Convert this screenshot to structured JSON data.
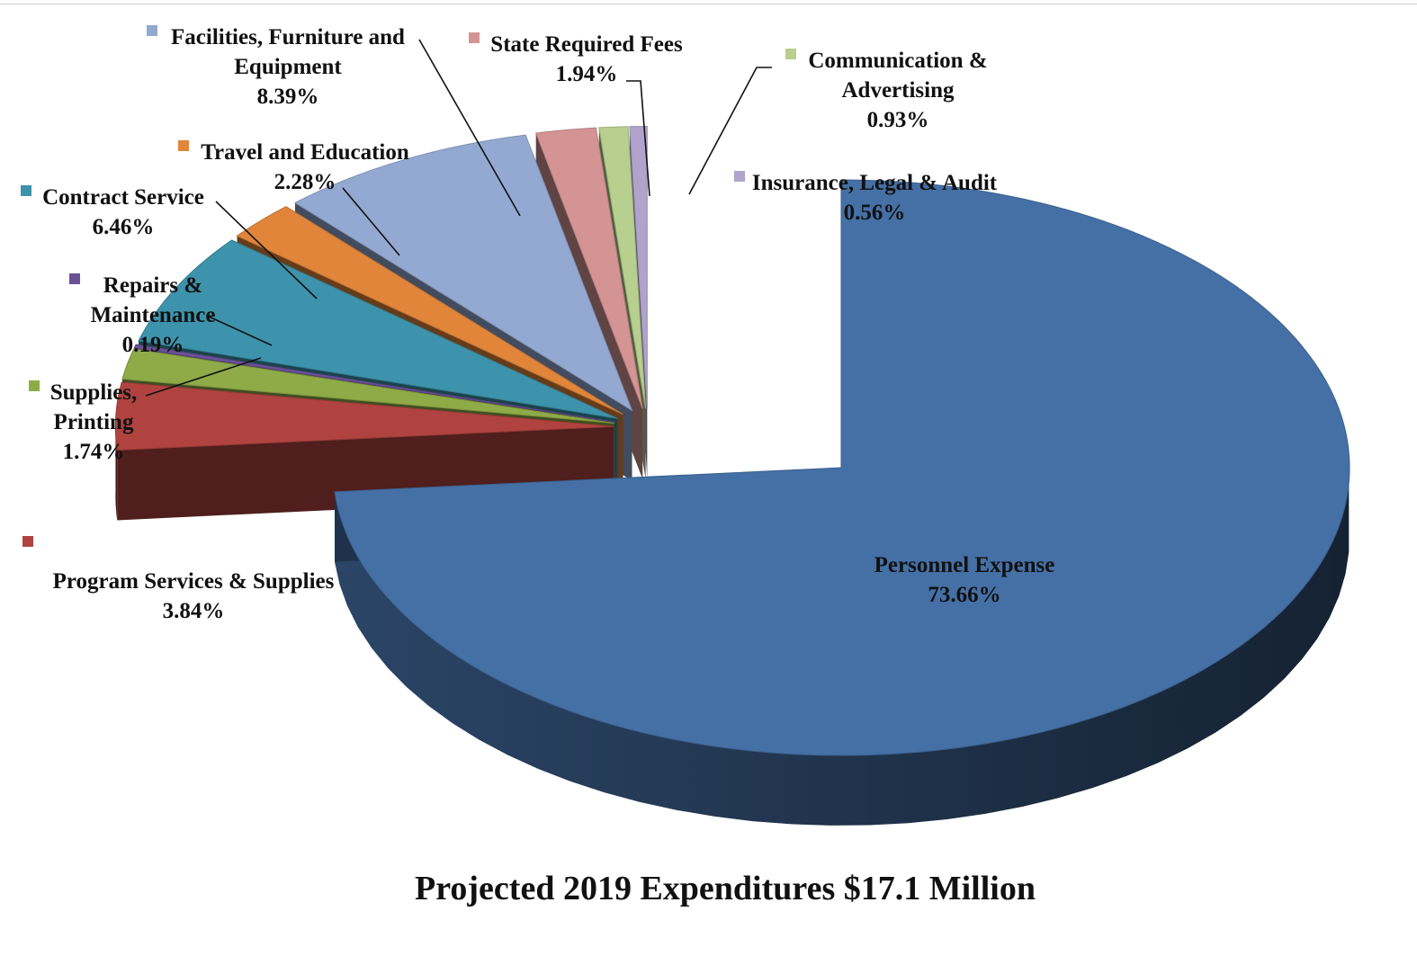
{
  "chart_data": {
    "type": "pie",
    "title": "Projected 2019 Expenditures $17.1 Million",
    "unit": "%",
    "slices": [
      {
        "name": "Personnel Expense",
        "label_lines": [
          "Personnel Expense"
        ],
        "value": 73.66,
        "value_label": "73.66%",
        "color": "#4570a6",
        "exploded": true
      },
      {
        "name": "Program Services & Supplies",
        "label_lines": [
          "Program  Services & Supplies"
        ],
        "value": 3.84,
        "value_label": "3.84%",
        "color": "#b04340"
      },
      {
        "name": "Supplies, Printing",
        "label_lines": [
          "Supplies,",
          "Printing"
        ],
        "value": 1.74,
        "value_label": "1.74%",
        "color": "#8eab47"
      },
      {
        "name": "Repairs & Maintenance",
        "label_lines": [
          "Repairs &",
          "Maintenance"
        ],
        "value": 0.19,
        "value_label": "0.19%",
        "color": "#6a5196"
      },
      {
        "name": "Contract Service",
        "label_lines": [
          "Contract  Service"
        ],
        "value": 6.46,
        "value_label": "6.46%",
        "color": "#3d93ab"
      },
      {
        "name": "Travel and Education",
        "label_lines": [
          "Travel and  Education"
        ],
        "value": 2.28,
        "value_label": "2.28%",
        "color": "#e0853a"
      },
      {
        "name": "Facilities, Furniture and Equipment",
        "label_lines": [
          "Facilities,  Furniture   and",
          "Equipment"
        ],
        "value": 8.39,
        "value_label": "8.39%",
        "color": "#93a9d1"
      },
      {
        "name": "State Required Fees",
        "label_lines": [
          "State  Required  Fees"
        ],
        "value": 1.94,
        "value_label": "1.94%",
        "color": "#d59494"
      },
      {
        "name": "Communication & Advertising",
        "label_lines": [
          "Communication  &",
          "Advertising"
        ],
        "value": 0.93,
        "value_label": "0.93%",
        "color": "#b7cf8f"
      },
      {
        "name": "Insurance, Legal & Audit",
        "label_lines": [
          "Insurance,  Legal & Audit"
        ],
        "value": 0.56,
        "value_label": "0.56%",
        "color": "#b0a3cc"
      }
    ]
  }
}
